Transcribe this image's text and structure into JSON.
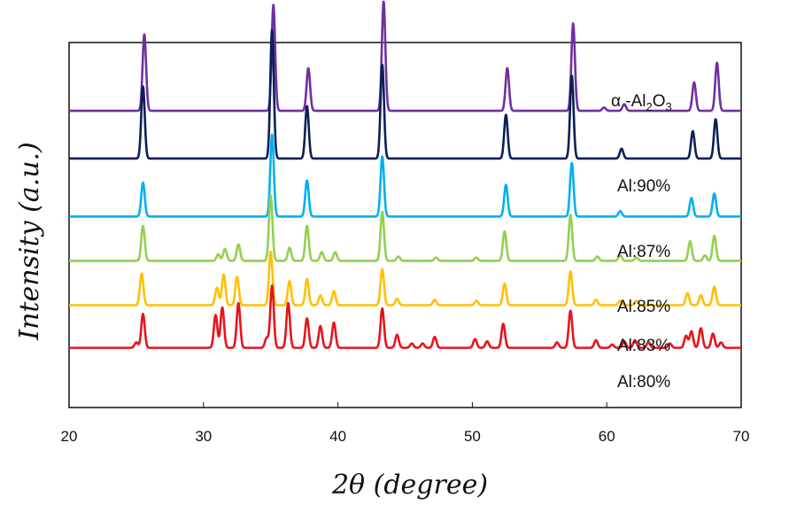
{
  "chart_data": {
    "type": "line",
    "xlabel": "2θ (degree)",
    "ylabel": "Intensity (a.u.)",
    "xlim": [
      20,
      70
    ],
    "x_ticks": [
      20,
      30,
      40,
      50,
      60,
      70
    ],
    "grid": false,
    "legend": "inline labels at right",
    "series": [
      {
        "name": "α-Al2O3",
        "name_parts": {
          "prefix": "α -Al",
          "sub1": "2",
          "mid": "O",
          "sub2": "3"
        },
        "color": "#7030a0",
        "baseline": 0.87,
        "peaks": [
          [
            25.6,
            0.7
          ],
          [
            35.2,
            0.97
          ],
          [
            37.8,
            0.39
          ],
          [
            43.4,
            1.0
          ],
          [
            52.6,
            0.39
          ],
          [
            57.5,
            0.8
          ],
          [
            59.8,
            0.03
          ],
          [
            61.3,
            0.06
          ],
          [
            66.5,
            0.26
          ],
          [
            68.2,
            0.44
          ]
        ]
      },
      {
        "name": "Al:90%",
        "color": "#0b1f57",
        "baseline": 0.73,
        "peaks": [
          [
            25.5,
            0.66
          ],
          [
            35.1,
            1.18
          ],
          [
            37.7,
            0.48
          ],
          [
            43.3,
            0.86
          ],
          [
            52.5,
            0.4
          ],
          [
            57.4,
            0.76
          ],
          [
            61.1,
            0.09
          ],
          [
            66.4,
            0.25
          ],
          [
            68.1,
            0.36
          ]
        ]
      },
      {
        "name": "Al:87%",
        "color": "#00b0f0",
        "baseline": 0.56,
        "peaks": [
          [
            25.5,
            0.31
          ],
          [
            35.1,
            0.75
          ],
          [
            37.7,
            0.33
          ],
          [
            43.3,
            0.55
          ],
          [
            52.5,
            0.29
          ],
          [
            57.4,
            0.49
          ],
          [
            61.0,
            0.05
          ],
          [
            66.3,
            0.17
          ],
          [
            68.0,
            0.21
          ]
        ]
      },
      {
        "name": "Al:85%",
        "color": "#92d050",
        "baseline": 0.43,
        "peaks": [
          [
            25.5,
            0.32
          ],
          [
            31.1,
            0.06
          ],
          [
            31.6,
            0.11
          ],
          [
            32.6,
            0.15
          ],
          [
            35.0,
            0.6
          ],
          [
            36.4,
            0.12
          ],
          [
            37.7,
            0.32
          ],
          [
            38.8,
            0.08
          ],
          [
            39.8,
            0.08
          ],
          [
            43.3,
            0.45
          ],
          [
            44.5,
            0.04
          ],
          [
            47.3,
            0.03
          ],
          [
            50.3,
            0.03
          ],
          [
            52.4,
            0.27
          ],
          [
            57.3,
            0.42
          ],
          [
            59.3,
            0.04
          ],
          [
            61.0,
            0.05
          ],
          [
            62.2,
            0.03
          ],
          [
            66.2,
            0.18
          ],
          [
            67.3,
            0.05
          ],
          [
            68.0,
            0.23
          ]
        ]
      },
      {
        "name": "Al:83%",
        "color": "#ffc000",
        "baseline": 0.3,
        "peaks": [
          [
            25.4,
            0.29
          ],
          [
            31.0,
            0.16
          ],
          [
            31.5,
            0.28
          ],
          [
            32.5,
            0.26
          ],
          [
            35.0,
            0.49
          ],
          [
            36.4,
            0.22
          ],
          [
            37.7,
            0.24
          ],
          [
            38.7,
            0.09
          ],
          [
            39.7,
            0.13
          ],
          [
            43.3,
            0.33
          ],
          [
            44.4,
            0.06
          ],
          [
            47.2,
            0.05
          ],
          [
            50.3,
            0.04
          ],
          [
            52.4,
            0.2
          ],
          [
            57.3,
            0.31
          ],
          [
            59.2,
            0.05
          ],
          [
            61.0,
            0.04
          ],
          [
            62.2,
            0.04
          ],
          [
            66.0,
            0.11
          ],
          [
            67.0,
            0.09
          ],
          [
            68.0,
            0.17
          ]
        ]
      },
      {
        "name": "Al:80%",
        "color": "#e8141c",
        "baseline": 0.175,
        "peaks": [
          [
            25.0,
            0.05
          ],
          [
            25.5,
            0.31
          ],
          [
            30.9,
            0.3
          ],
          [
            31.4,
            0.37
          ],
          [
            32.6,
            0.41
          ],
          [
            34.7,
            0.09
          ],
          [
            35.1,
            0.57
          ],
          [
            36.3,
            0.41
          ],
          [
            37.7,
            0.27
          ],
          [
            38.7,
            0.2
          ],
          [
            39.7,
            0.23
          ],
          [
            43.3,
            0.36
          ],
          [
            44.4,
            0.12
          ],
          [
            45.5,
            0.04
          ],
          [
            46.3,
            0.04
          ],
          [
            47.2,
            0.1
          ],
          [
            50.2,
            0.08
          ],
          [
            51.1,
            0.06
          ],
          [
            52.3,
            0.22
          ],
          [
            56.3,
            0.05
          ],
          [
            57.3,
            0.34
          ],
          [
            59.2,
            0.07
          ],
          [
            60.4,
            0.03
          ],
          [
            61.3,
            0.06
          ],
          [
            62.1,
            0.07
          ],
          [
            63.1,
            0.05
          ],
          [
            64.7,
            0.04
          ],
          [
            65.9,
            0.11
          ],
          [
            66.3,
            0.15
          ],
          [
            67.0,
            0.18
          ],
          [
            67.9,
            0.13
          ],
          [
            68.5,
            0.05
          ]
        ]
      }
    ]
  }
}
